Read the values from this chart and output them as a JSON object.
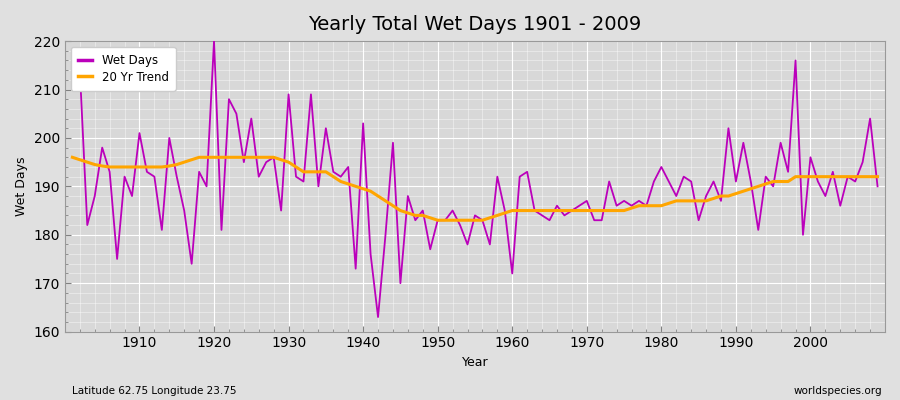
{
  "title": "Yearly Total Wet Days 1901 - 2009",
  "xlabel": "Year",
  "ylabel": "Wet Days",
  "footnote_left": "Latitude 62.75 Longitude 23.75",
  "footnote_right": "worldspecies.org",
  "line_color": "#bb00bb",
  "trend_color": "#ffa500",
  "bg_color": "#e0e0e0",
  "plot_bg_color": "#d8d8d8",
  "ylim": [
    160,
    220
  ],
  "yticks": [
    160,
    170,
    180,
    190,
    200,
    210,
    220
  ],
  "xlim": [
    1900,
    2010
  ],
  "xticks": [
    1910,
    1920,
    1930,
    1940,
    1950,
    1960,
    1970,
    1980,
    1990,
    2000
  ],
  "years": [
    1901,
    1902,
    1903,
    1904,
    1905,
    1906,
    1907,
    1908,
    1909,
    1910,
    1911,
    1912,
    1913,
    1914,
    1915,
    1916,
    1917,
    1918,
    1919,
    1920,
    1921,
    1922,
    1923,
    1924,
    1925,
    1926,
    1927,
    1928,
    1929,
    1930,
    1931,
    1932,
    1933,
    1934,
    1935,
    1936,
    1937,
    1938,
    1939,
    1940,
    1941,
    1942,
    1943,
    1944,
    1945,
    1946,
    1947,
    1948,
    1949,
    1950,
    1951,
    1952,
    1953,
    1954,
    1955,
    1956,
    1957,
    1958,
    1959,
    1960,
    1961,
    1962,
    1963,
    1964,
    1965,
    1966,
    1967,
    1968,
    1969,
    1970,
    1971,
    1972,
    1973,
    1974,
    1975,
    1976,
    1977,
    1978,
    1979,
    1980,
    1981,
    1982,
    1983,
    1984,
    1985,
    1986,
    1987,
    1988,
    1989,
    1990,
    1991,
    1992,
    1993,
    1994,
    1995,
    1996,
    1997,
    1998,
    1999,
    2000,
    2001,
    2002,
    2003,
    2004,
    2005,
    2006,
    2007,
    2008,
    2009
  ],
  "wet_days": [
    213,
    214,
    182,
    188,
    198,
    193,
    175,
    192,
    188,
    201,
    193,
    192,
    181,
    200,
    192,
    185,
    174,
    193,
    190,
    220,
    181,
    208,
    205,
    195,
    204,
    192,
    195,
    196,
    185,
    209,
    192,
    191,
    209,
    190,
    202,
    193,
    192,
    194,
    173,
    203,
    176,
    163,
    180,
    199,
    170,
    188,
    183,
    185,
    177,
    183,
    183,
    185,
    182,
    178,
    184,
    183,
    178,
    192,
    185,
    172,
    192,
    193,
    185,
    184,
    183,
    186,
    184,
    185,
    186,
    187,
    183,
    183,
    191,
    186,
    187,
    186,
    187,
    186,
    191,
    194,
    191,
    188,
    192,
    191,
    183,
    188,
    191,
    187,
    202,
    191,
    199,
    191,
    181,
    192,
    190,
    199,
    193,
    216,
    180,
    196,
    191,
    188,
    193,
    186,
    192,
    191,
    195,
    204,
    190
  ],
  "trend_values": [
    196,
    195.5,
    195,
    194.5,
    194.2,
    194,
    194,
    194,
    194,
    194,
    194,
    194,
    194,
    194.2,
    194.5,
    195,
    195.5,
    196,
    196,
    196,
    196,
    196,
    196,
    196,
    196,
    196,
    196,
    196,
    195.5,
    195,
    194,
    193,
    193,
    193,
    193,
    192,
    191,
    190.5,
    190,
    189.5,
    189,
    188,
    187,
    186,
    185,
    184.5,
    184,
    184,
    183.5,
    183,
    183,
    183,
    183,
    183,
    183,
    183,
    183.5,
    184,
    184.5,
    185,
    185,
    185,
    185,
    185,
    185,
    185,
    185,
    185,
    185,
    185,
    185,
    185,
    185,
    185,
    185,
    185.5,
    186,
    186,
    186,
    186,
    186.5,
    187,
    187,
    187,
    187,
    187,
    187.5,
    188,
    188,
    188.5,
    189,
    189.5,
    190,
    190.5,
    191,
    191,
    191,
    192,
    192,
    192,
    192,
    192,
    192,
    192,
    192,
    192,
    192,
    192,
    192
  ]
}
